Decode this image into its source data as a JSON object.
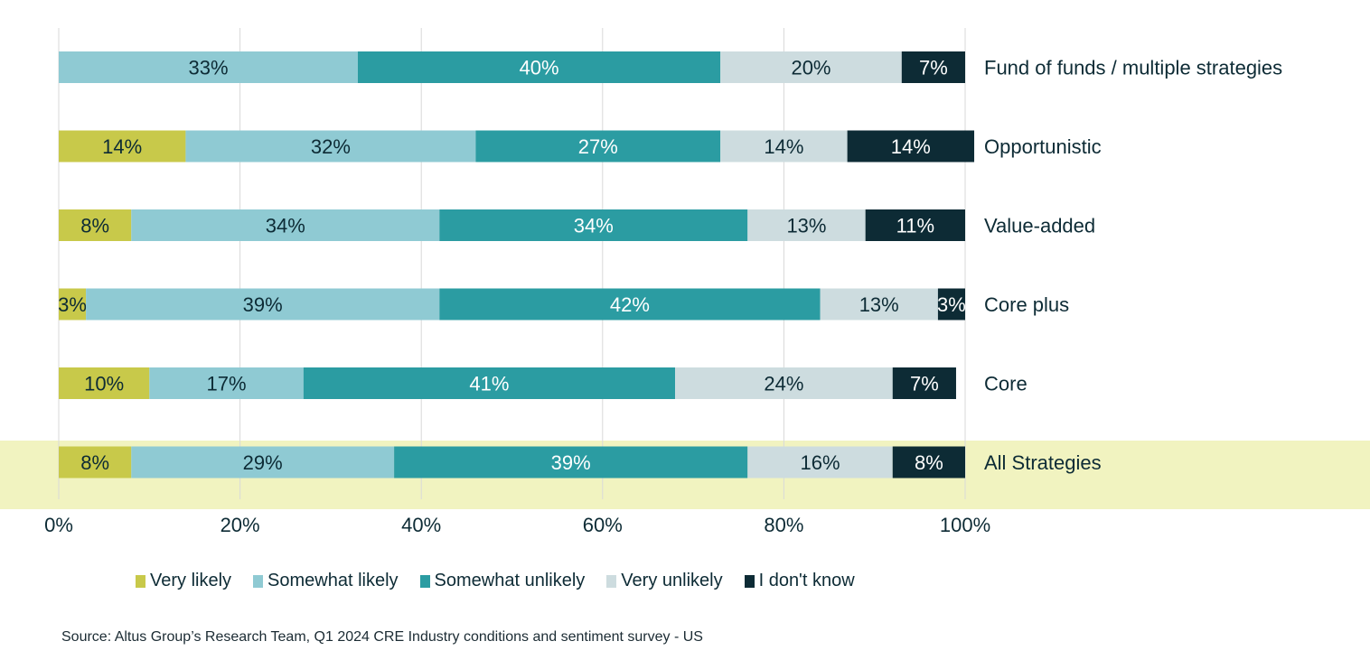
{
  "chart_data": {
    "type": "bar",
    "orientation": "horizontal",
    "stacked": true,
    "title": "",
    "xlabel": "",
    "ylabel": "",
    "xlim": [
      0,
      100
    ],
    "grid": true,
    "x_ticks": [
      "0%",
      "20%",
      "40%",
      "60%",
      "80%",
      "100%"
    ],
    "x_tick_values": [
      0,
      20,
      40,
      60,
      80,
      100
    ],
    "legend_position": "bottom",
    "categories": [
      "Fund of funds / multiple strategies",
      "Opportunistic",
      "Value-added",
      "Core plus",
      "Core",
      "All Strategies"
    ],
    "highlighted_category": "All Strategies",
    "series": [
      {
        "name": "Very likely",
        "color": "#c8c94a",
        "label_color": "#0d2b35",
        "values": [
          0,
          14,
          8,
          3,
          10,
          8
        ]
      },
      {
        "name": "Somewhat likely",
        "color": "#8fcad3",
        "label_color": "#0d2b35",
        "values": [
          33,
          32,
          34,
          39,
          17,
          29
        ]
      },
      {
        "name": "Somewhat unlikely",
        "color": "#2b9ca2",
        "label_color": "#ffffff",
        "values": [
          40,
          27,
          34,
          42,
          41,
          39
        ]
      },
      {
        "name": "Very unlikely",
        "color": "#cddcdf",
        "label_color": "#0d2b35",
        "values": [
          20,
          14,
          13,
          13,
          24,
          16
        ]
      },
      {
        "name": "I don't know",
        "color": "#0d2b35",
        "label_color": "#ffffff",
        "values": [
          7,
          14,
          11,
          3,
          7,
          8
        ]
      }
    ],
    "value_suffix": "%"
  },
  "colors": {
    "highlight_band": "#f1f3c0",
    "gridline": "#d9d9d9",
    "text": "#0d2b35"
  },
  "source": "Source: Altus Group’s Research Team, Q1 2024 CRE Industry conditions and sentiment survey - US"
}
